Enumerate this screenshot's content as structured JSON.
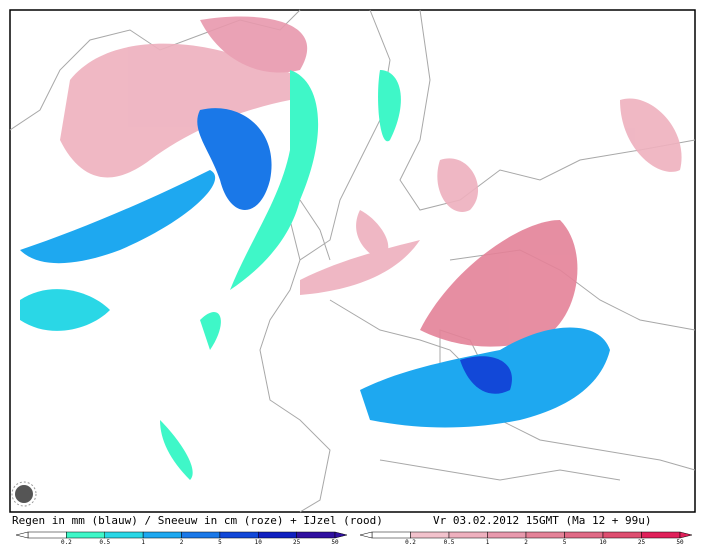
{
  "caption": {
    "legend_text": "Regen in mm (blauw) / Sneeuw in cm (roze) + IJzel (rood)",
    "valid_time": "Vr 03.02.2012 15GMT (Ma 12 + 99u)"
  },
  "scales": {
    "rain": {
      "labels": [
        "0.2",
        "0.5",
        "1",
        "2",
        "5",
        "10",
        "25",
        "50"
      ],
      "colors": [
        "#ffffff",
        "#3ff7c8",
        "#2ad7e6",
        "#1ea8f0",
        "#1a78e8",
        "#1248d8",
        "#1020c0",
        "#3010a0"
      ]
    },
    "snow": {
      "labels": [
        "0.2",
        "0.5",
        "1",
        "2",
        "5",
        "10",
        "25",
        "50"
      ],
      "colors": [
        "#ffffff",
        "#f2c2cc",
        "#eeb0be",
        "#e899ad",
        "#e48298",
        "#e06a86",
        "#de4e70",
        "#e0205a"
      ]
    }
  }
}
